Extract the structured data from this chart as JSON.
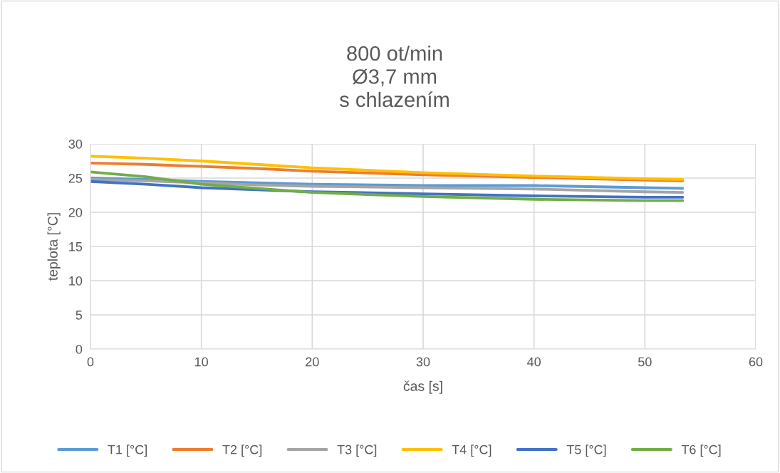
{
  "chart_data": {
    "type": "line",
    "title": "800 ot/min\nØ3,7 mm\ns chlazením",
    "xlabel": "čas [s]",
    "ylabel": "teplota [°C]",
    "x": [
      0,
      5,
      10,
      15,
      20,
      30,
      40,
      50,
      53.4
    ],
    "series": [
      {
        "name": "T1 [°C]",
        "color": "#5b9bd5",
        "values": [
          25.0,
          24.8,
          24.5,
          24.3,
          24.1,
          23.9,
          23.9,
          23.6,
          23.5
        ]
      },
      {
        "name": "T2 [°C]",
        "color": "#ed7d31",
        "values": [
          27.2,
          27.0,
          26.7,
          26.4,
          26.0,
          25.5,
          25.1,
          24.7,
          24.6
        ]
      },
      {
        "name": "T3 [°C]",
        "color": "#a5a5a5",
        "values": [
          24.8,
          24.6,
          24.3,
          24.0,
          23.8,
          23.6,
          23.4,
          23.0,
          22.9
        ]
      },
      {
        "name": "T4 [°C]",
        "color": "#ffc000",
        "values": [
          28.2,
          27.9,
          27.5,
          27.0,
          26.5,
          25.8,
          25.3,
          24.9,
          24.8
        ]
      },
      {
        "name": "T5 [°C]",
        "color": "#4472c4",
        "values": [
          24.5,
          24.1,
          23.6,
          23.3,
          23.0,
          22.7,
          22.4,
          22.2,
          22.2
        ]
      },
      {
        "name": "T6 [°C]",
        "color": "#70ad47",
        "values": [
          25.9,
          25.2,
          24.1,
          23.5,
          22.9,
          22.3,
          21.9,
          21.7,
          21.7
        ]
      }
    ],
    "xlim": [
      0,
      60
    ],
    "xticks": [
      0,
      10,
      20,
      30,
      40,
      50,
      60
    ],
    "ylim": [
      0,
      30
    ],
    "yticks": [
      0,
      5,
      10,
      15,
      20,
      25,
      30
    ],
    "grid": true,
    "legend": "bottom",
    "marker": "none",
    "line_style": "solid"
  }
}
